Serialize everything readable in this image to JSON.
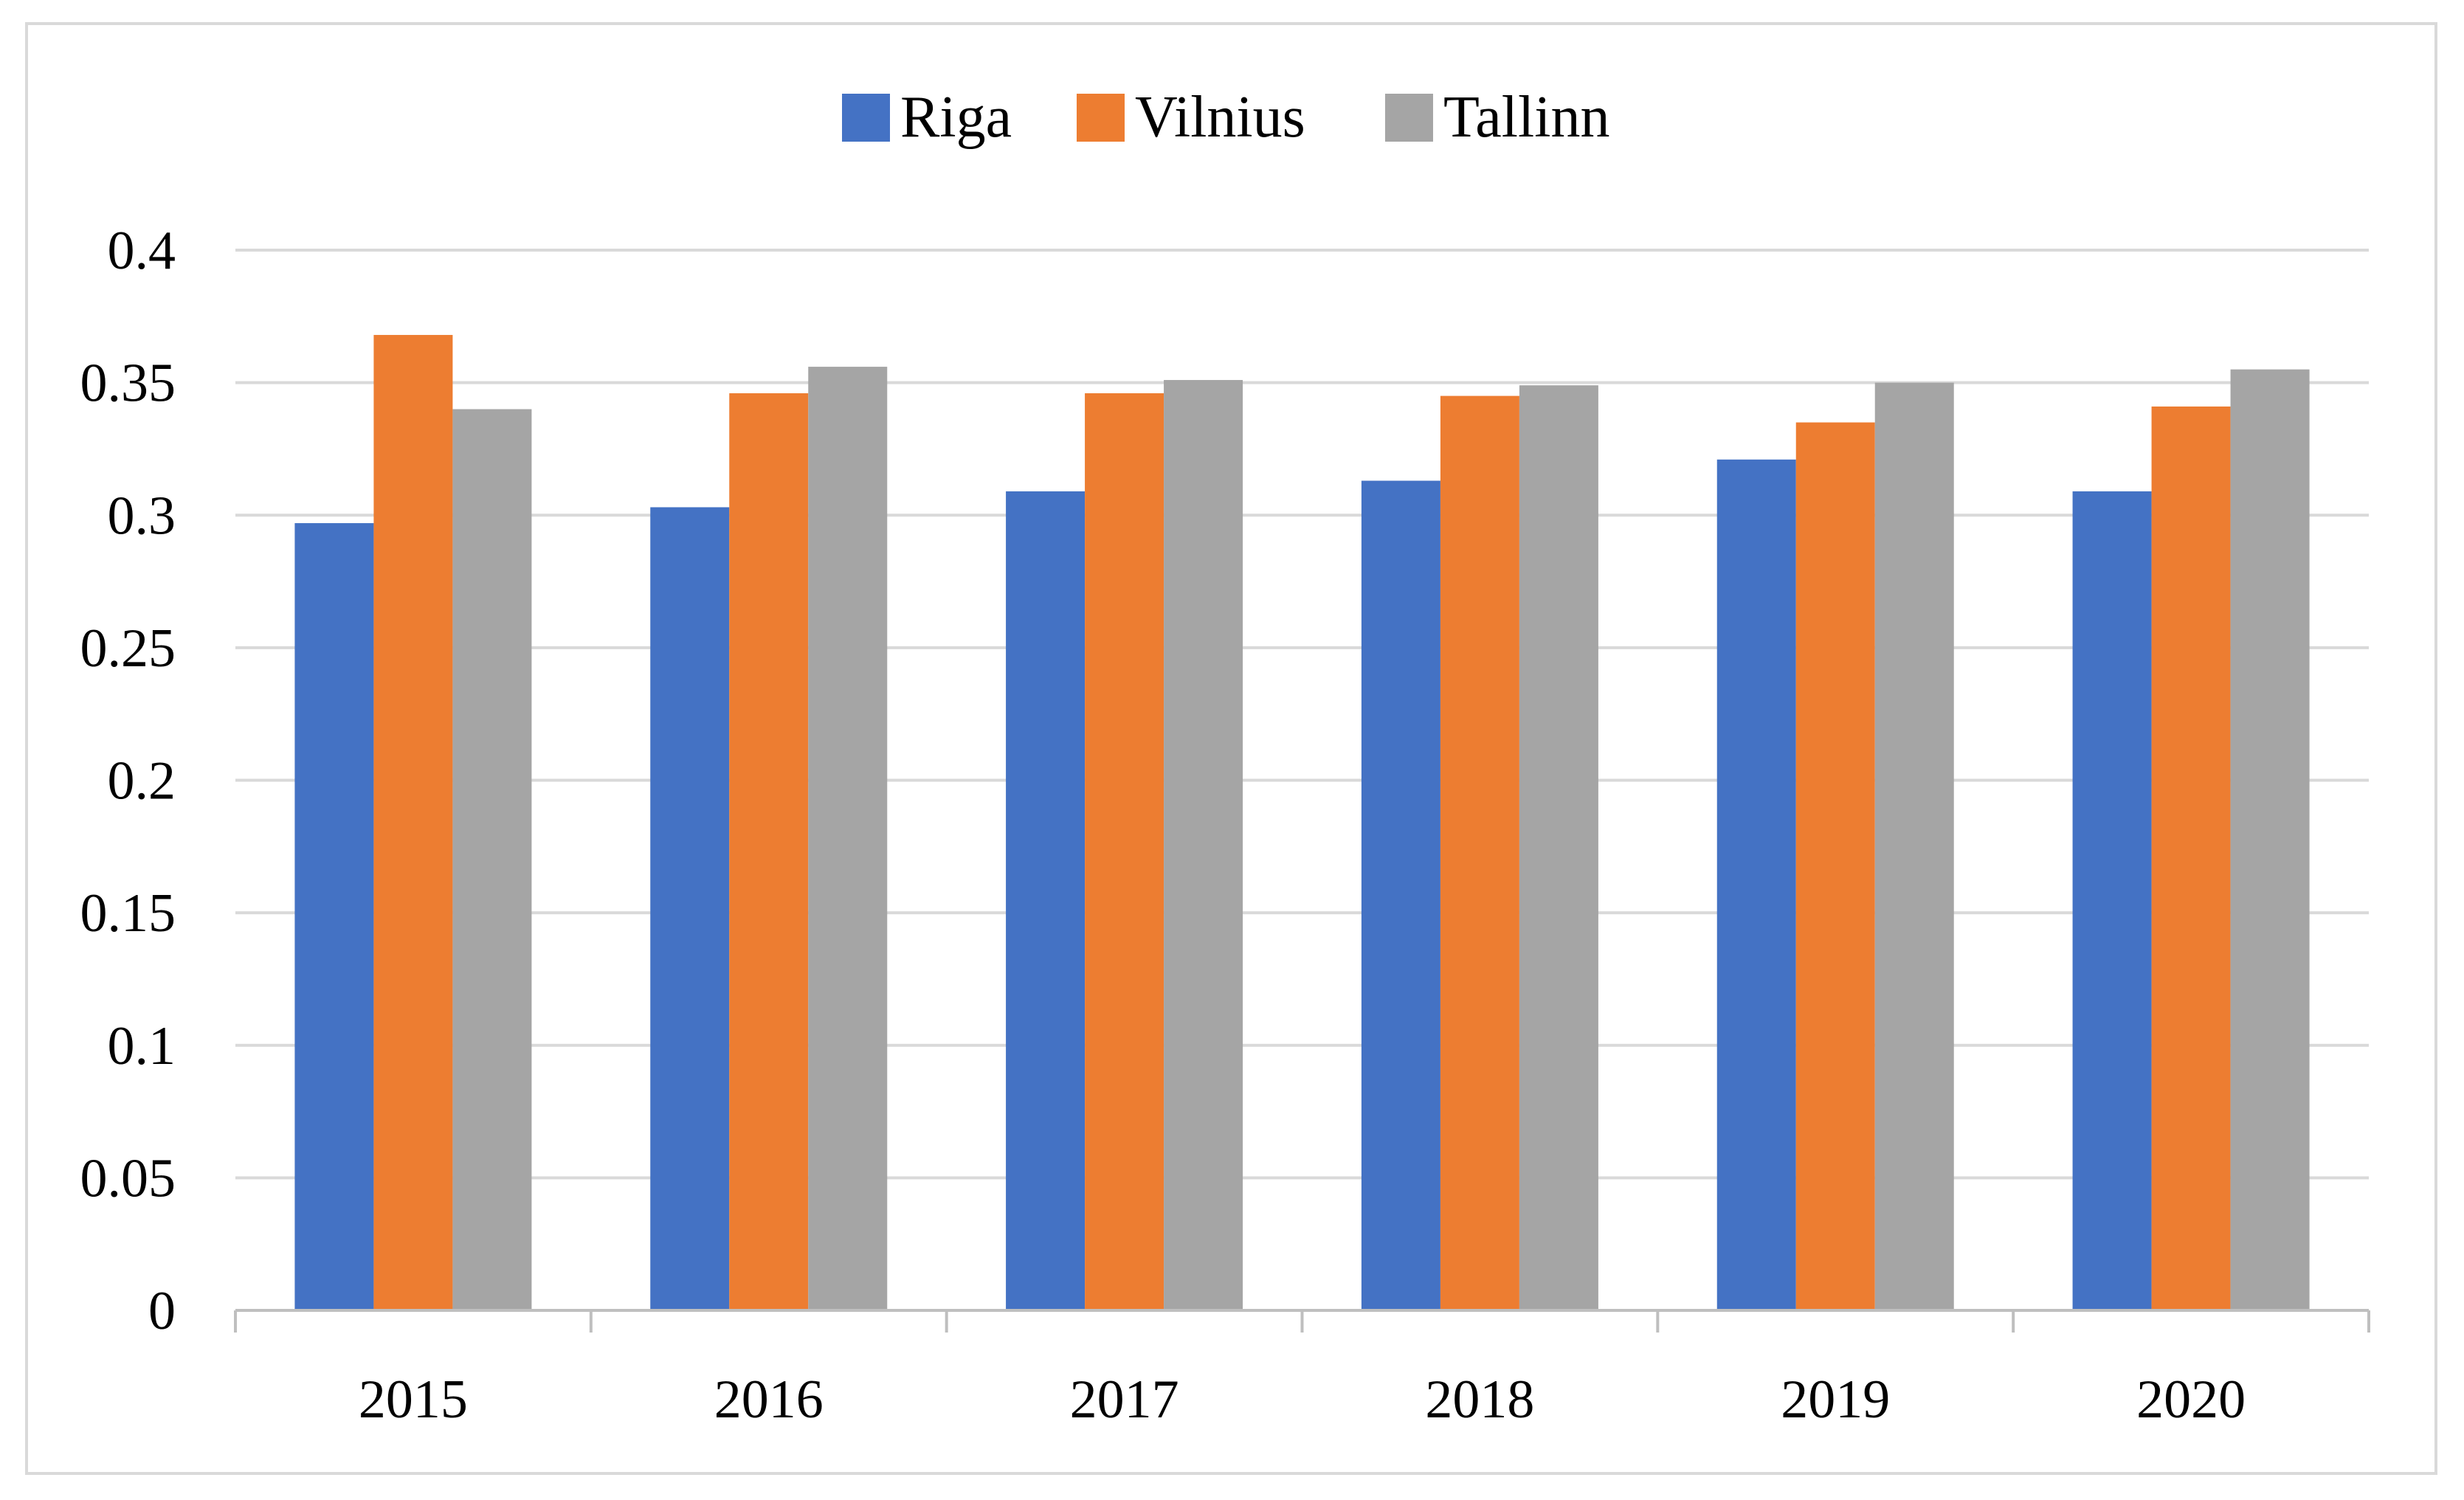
{
  "chart_data": {
    "type": "bar",
    "categories": [
      "2015",
      "2016",
      "2017",
      "2018",
      "2019",
      "2020"
    ],
    "series": [
      {
        "name": "Riga",
        "color": "#4472C4",
        "values": [
          0.297,
          0.303,
          0.309,
          0.313,
          0.321,
          0.309
        ]
      },
      {
        "name": "Vilnius",
        "color": "#ED7D31",
        "values": [
          0.368,
          0.346,
          0.346,
          0.345,
          0.335,
          0.341
        ]
      },
      {
        "name": "Tallinn",
        "color": "#A5A5A5",
        "values": [
          0.34,
          0.356,
          0.351,
          0.349,
          0.35,
          0.355
        ]
      }
    ],
    "yticks": [
      "0",
      "0.05",
      "0.1",
      "0.15",
      "0.2",
      "0.25",
      "0.3",
      "0.35",
      "0.4"
    ],
    "ylim": [
      0,
      0.4
    ],
    "title": "",
    "xlabel": "",
    "ylabel": "",
    "grid": true,
    "legend_position": "top-center"
  }
}
